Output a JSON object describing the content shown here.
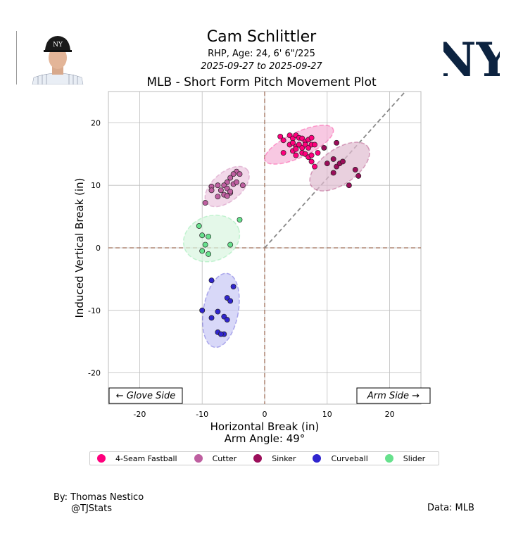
{
  "header": {
    "player_name": "Cam Schlittler",
    "player_info": "RHP, Age: 24, 6' 6\"/225",
    "date_range": "2025-09-27 to 2025-09-27",
    "plot_title": "MLB - Short Form Pitch Movement Plot",
    "team_logo": "NY"
  },
  "chart_data": {
    "type": "scatter",
    "title": "MLB - Short Form Pitch Movement Plot",
    "xlabel": "Horizontal Break (in)",
    "ylabel": "Induced Vertical Break (in)",
    "arm_angle_label": "Arm Angle: 49°",
    "xlim": [
      -25,
      25
    ],
    "ylim": [
      -25,
      25
    ],
    "xticks": [
      -20,
      -10,
      0,
      10,
      20
    ],
    "yticks": [
      -20,
      -10,
      0,
      10,
      20
    ],
    "grid": true,
    "side_labels": {
      "left": "← Glove Side",
      "right": "Arm Side →"
    },
    "arm_angle_deg": 49,
    "series": [
      {
        "name": "4-Seam Fastball",
        "color": "#ff007d",
        "ellipse": {
          "cx": 5.5,
          "cy": 16.5,
          "rx": 6.0,
          "ry": 2.0,
          "angle": -25,
          "fill": "#f5b0d5"
        },
        "x": [
          2.5,
          3.0,
          4.0,
          4.5,
          5.0,
          5.5,
          6.0,
          6.5,
          7.0,
          7.5,
          4.0,
          4.5,
          5.0,
          5.5,
          6.0,
          6.5,
          7.0,
          7.5,
          8.0,
          4.5,
          5.0,
          6.0,
          6.5,
          7.0,
          7.5,
          8.5,
          3.0,
          5.0,
          7.5,
          8.0
        ],
        "y": [
          17.8,
          17.2,
          18.0,
          17.5,
          18.0,
          17.6,
          17.5,
          17.0,
          17.3,
          17.6,
          16.5,
          16.8,
          16.2,
          16.5,
          16.0,
          16.5,
          16.0,
          16.5,
          16.5,
          15.5,
          15.8,
          15.2,
          15.0,
          14.5,
          14.8,
          15.2,
          15.2,
          14.8,
          13.8,
          13.0
        ]
      },
      {
        "name": "Cutter",
        "color": "#be5fa0",
        "ellipse": {
          "cx": -6.0,
          "cy": 9.8,
          "rx": 4.2,
          "ry": 2.3,
          "angle": -40,
          "fill": "#ecc8e0"
        },
        "x": [
          -4.5,
          -4.0,
          -5.0,
          -5.5,
          -6.0,
          -6.5,
          -7.5,
          -8.5,
          -5.0,
          -6.0,
          -7.0,
          -4.5,
          -3.5,
          -5.5,
          -6.5,
          -8.5,
          -7.5,
          -6.0,
          -5.5,
          -9.5
        ],
        "y": [
          12.2,
          11.8,
          11.8,
          11.2,
          10.5,
          10.0,
          10.0,
          9.8,
          10.2,
          9.5,
          9.2,
          10.5,
          10.0,
          8.8,
          8.5,
          9.2,
          8.2,
          8.3,
          9.0,
          7.2
        ]
      },
      {
        "name": "Sinker",
        "color": "#9b0e5a",
        "ellipse": {
          "cx": 12.0,
          "cy": 13.0,
          "rx": 5.5,
          "ry": 2.8,
          "angle": -35,
          "fill": "#e0bcd0"
        },
        "x": [
          11.5,
          10.0,
          11.0,
          11.5,
          12.0,
          12.5,
          11.0,
          14.5,
          15.0,
          13.5,
          9.5
        ],
        "y": [
          16.8,
          13.5,
          14.2,
          13.0,
          13.5,
          13.8,
          12.0,
          12.5,
          11.5,
          10.0,
          16.0
        ]
      },
      {
        "name": "Curveball",
        "color": "#3025ce",
        "ellipse": {
          "cx": -7.0,
          "cy": -10.0,
          "rx": 2.8,
          "ry": 6.0,
          "angle": 10,
          "fill": "#c8c8f5"
        },
        "x": [
          -8.5,
          -5.0,
          -6.0,
          -5.5,
          -7.5,
          -10.0,
          -6.5,
          -8.5,
          -6.0,
          -7.5,
          -6.5,
          -7.0
        ],
        "y": [
          -5.2,
          -6.2,
          -8.0,
          -8.5,
          -10.2,
          -10.0,
          -11.0,
          -11.2,
          -11.5,
          -13.5,
          -13.8,
          -13.8
        ]
      },
      {
        "name": "Slider",
        "color": "#67e18d",
        "ellipse": {
          "cx": -8.5,
          "cy": 1.5,
          "rx": 4.6,
          "ry": 3.6,
          "angle": -20,
          "fill": "#d8f5e0"
        },
        "x": [
          -4.0,
          -10.5,
          -10.0,
          -9.0,
          -9.5,
          -5.5,
          -10.0,
          -9.0
        ],
        "y": [
          4.5,
          3.5,
          2.0,
          1.8,
          0.5,
          0.5,
          -0.5,
          -1.0
        ]
      }
    ]
  },
  "legend": {
    "items": [
      {
        "label": "4-Seam Fastball",
        "color": "#ff007d"
      },
      {
        "label": "Cutter",
        "color": "#be5fa0"
      },
      {
        "label": "Sinker",
        "color": "#9b0e5a"
      },
      {
        "label": "Curveball",
        "color": "#3025ce"
      },
      {
        "label": "Slider",
        "color": "#67e18d"
      }
    ]
  },
  "footer": {
    "credit_by": "By: Thomas Nestico",
    "credit_handle": "@TJStats",
    "credit_data": "Data: MLB"
  }
}
